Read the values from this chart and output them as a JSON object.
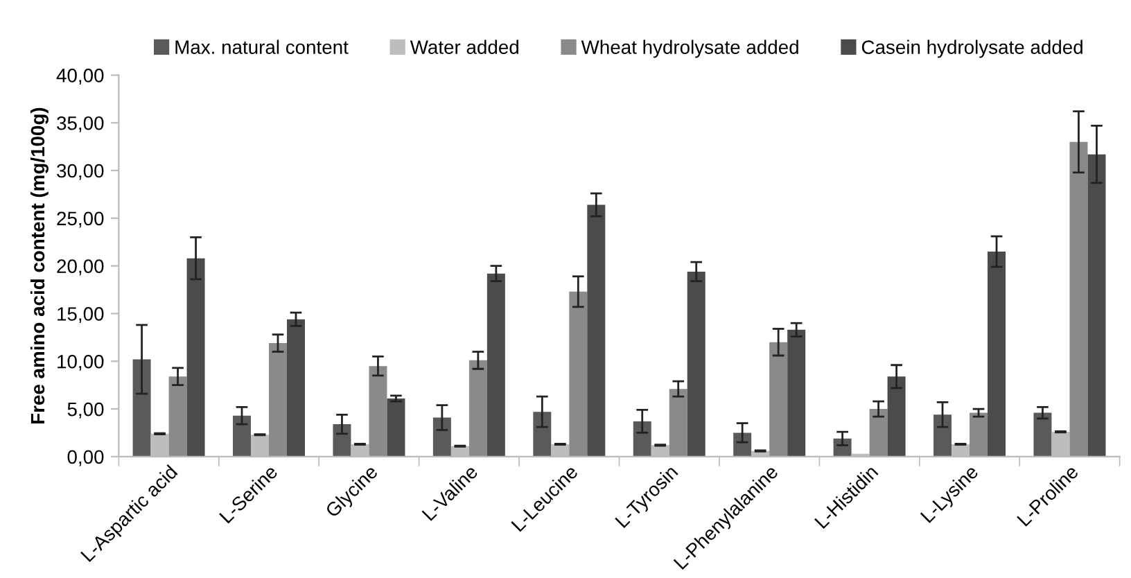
{
  "chart_data": {
    "type": "bar",
    "ylabel": "Free amino acid content (mg/100g)",
    "categories": [
      "L-Aspartic acid",
      "L-Serine",
      "Glycine",
      "L-Valine",
      "L-Leucine",
      "L-Tyrosin",
      "L-Phenylalanine",
      "L-Histidin",
      "L-Lysine",
      "L-Proline"
    ],
    "series": [
      {
        "name": "Max. natural content",
        "color": "#5a5a5a",
        "values": [
          10.2,
          4.3,
          3.4,
          4.1,
          4.7,
          3.7,
          2.5,
          1.9,
          4.4,
          4.6
        ],
        "errors": [
          3.6,
          0.9,
          1.0,
          1.3,
          1.6,
          1.2,
          1.0,
          0.7,
          1.3,
          0.6
        ]
      },
      {
        "name": "Water added",
        "color": "#bdbdbd",
        "values": [
          2.4,
          2.3,
          1.3,
          1.1,
          1.3,
          1.2,
          0.6,
          0.3,
          1.3,
          2.6
        ],
        "errors": [
          0.05,
          0.05,
          0.05,
          0.05,
          0.05,
          0.05,
          0.05,
          null,
          0.05,
          0.05
        ]
      },
      {
        "name": "Wheat hydrolysate added",
        "color": "#8a8a8a",
        "values": [
          8.4,
          11.9,
          9.5,
          10.1,
          17.3,
          7.1,
          12.0,
          5.0,
          4.6,
          33.0
        ],
        "errors": [
          0.9,
          0.9,
          1.0,
          0.9,
          1.6,
          0.8,
          1.4,
          0.8,
          0.4,
          3.2
        ]
      },
      {
        "name": "Casein hydrolysate added",
        "color": "#4b4b4b",
        "values": [
          20.8,
          14.4,
          6.1,
          19.2,
          26.4,
          19.4,
          13.3,
          8.4,
          21.5,
          31.7
        ],
        "errors": [
          2.2,
          0.7,
          0.3,
          0.8,
          1.2,
          1.0,
          0.7,
          1.2,
          1.6,
          3.0
        ]
      }
    ],
    "ylim": [
      0,
      40
    ],
    "yticks": [
      {
        "value": 0,
        "label": "0,00"
      },
      {
        "value": 5,
        "label": "5,00"
      },
      {
        "value": 10,
        "label": "10,00"
      },
      {
        "value": 15,
        "label": "15,00"
      },
      {
        "value": 20,
        "label": "20,00"
      },
      {
        "value": 25,
        "label": "25,00"
      },
      {
        "value": 30,
        "label": "30,00"
      },
      {
        "value": 35,
        "label": "35,00"
      },
      {
        "value": 40,
        "label": "40,00"
      }
    ],
    "grid": false,
    "legend": "top"
  }
}
